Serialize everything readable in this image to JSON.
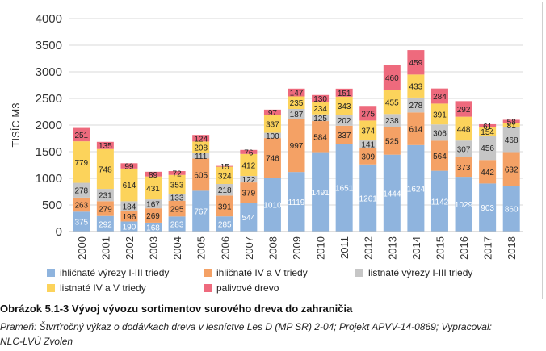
{
  "chart_data": {
    "type": "bar",
    "stacked": true,
    "title": "",
    "xlabel": "",
    "ylabel": "TISÍC M3",
    "ylim": [
      0,
      4000
    ],
    "yticks": [
      0,
      500,
      1000,
      1500,
      2000,
      2500,
      3000,
      3500,
      4000
    ],
    "grid": true,
    "legend_position": "bottom",
    "categories": [
      "2000",
      "2001",
      "2002",
      "2003",
      "2004",
      "2005",
      "2006",
      "2007",
      "2008",
      "2009",
      "2010",
      "2011",
      "2012",
      "2013",
      "2014",
      "2015",
      "2016",
      "2017",
      "2018"
    ],
    "series": [
      {
        "name": "ihličnaté výrezy I-III triedy",
        "color": "#8fb4de",
        "labels_shown": true,
        "values": [
          375,
          292,
          190,
          168,
          283,
          767,
          285,
          544,
          1010,
          1119,
          1491,
          1651,
          1261,
          1444,
          1624,
          1142,
          1029,
          903,
          860
        ]
      },
      {
        "name": "ihličnaté IV a V triedy",
        "color": "#f4a165",
        "labels_shown": true,
        "values": [
          263,
          279,
          196,
          269,
          295,
          605,
          391,
          379,
          746,
          997,
          584,
          337,
          309,
          525,
          614,
          564,
          373,
          442,
          632
        ]
      },
      {
        "name": "listnaté výrezy I-III triedy",
        "color": "#c6c6c6",
        "labels_shown": true,
        "values": [
          278,
          231,
          184,
          167,
          133,
          111,
          218,
          122,
          100,
          187,
          125,
          202,
          141,
          238,
          278,
          306,
          307,
          456,
          468
        ]
      },
      {
        "name": "listnaté IV a V triedy",
        "color": "#fcd35b",
        "labels_shown": true,
        "values": [
          779,
          748,
          614,
          431,
          353,
          208,
          324,
          412,
          337,
          235,
          234,
          343,
          374,
          455,
          433,
          391,
          448,
          154,
          81
        ]
      },
      {
        "name": "palivové drevo",
        "color": "#ee6a7d",
        "labels_shown": true,
        "values": [
          251,
          135,
          99,
          89,
          72,
          124,
          15,
          76,
          97,
          147,
          130,
          151,
          275,
          460,
          459,
          284,
          292,
          61,
          58
        ]
      }
    ]
  },
  "caption": {
    "title": "Obrázok 5.1-3 Vývoj vývozu sortimentov surového dreva do zahraničia",
    "source_line1": "Prameň: Štvrťročný výkaz o dodávkach dreva v lesníctve Les D (MP SR) 2-04; Projekt APVV-14-0869; Vypracoval:",
    "source_line2": "NLC-LVÚ Zvolen"
  }
}
